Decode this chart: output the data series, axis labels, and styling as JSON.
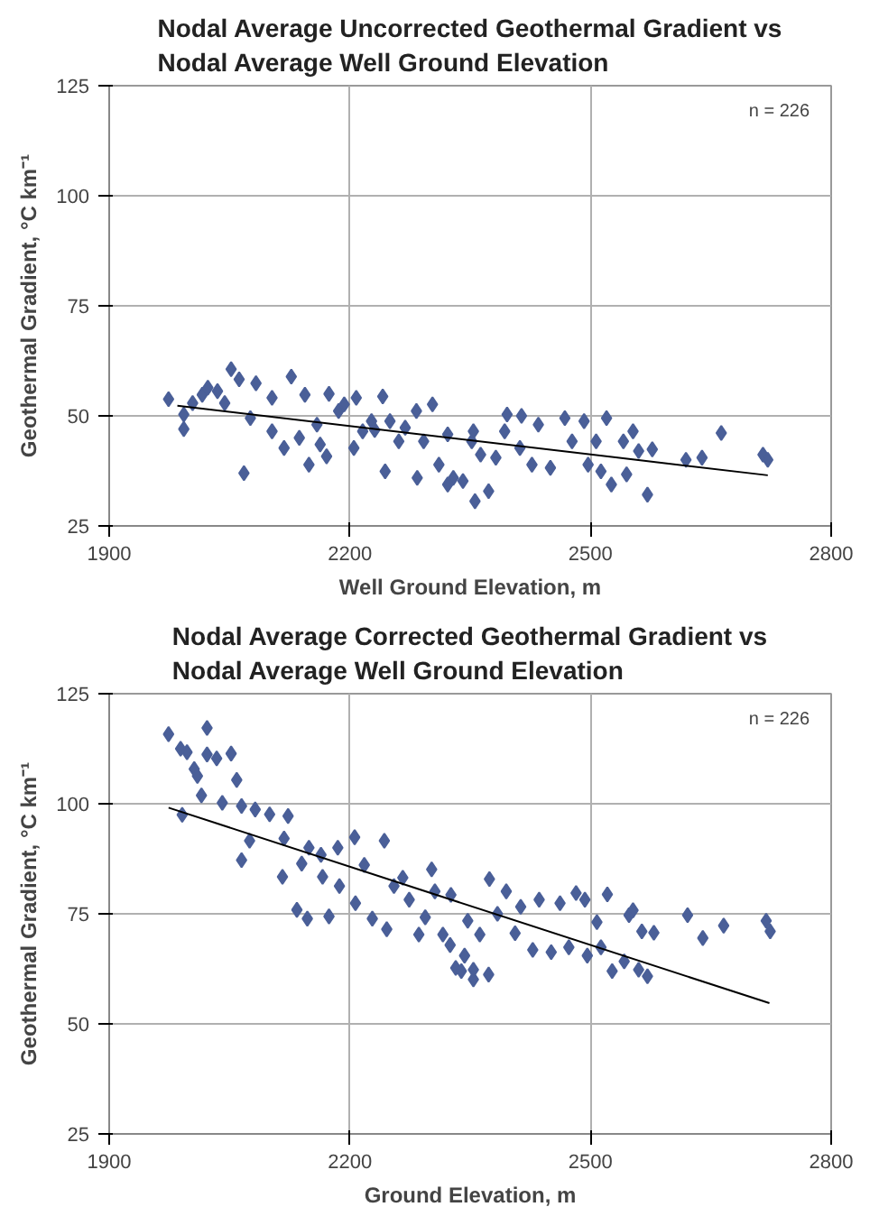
{
  "chart_data": [
    {
      "type": "scatter",
      "title": "Nodal Average Uncorrected Geothermal Gradient vs Nodal Average Well Ground Elevation",
      "xlabel": "Well Ground Elevation, m",
      "ylabel": "Geothermal Gradient, °C km⁻¹",
      "annotations": [
        "n = 226"
      ],
      "xlim": [
        1900,
        2800
      ],
      "ylim": [
        25,
        125
      ],
      "xticks": [
        1900,
        2200,
        2500,
        2800
      ],
      "yticks": [
        25,
        50,
        75,
        100,
        125
      ],
      "grid": true,
      "series": [
        {
          "color": "#4a5f98",
          "marker": "diamond",
          "x": [
            1974,
            1993,
            1993,
            2004,
            2016,
            2023,
            2035,
            2044,
            2052,
            2062,
            2068,
            2076,
            2083,
            2103,
            2103,
            2118,
            2127,
            2137,
            2144,
            2149,
            2159,
            2171,
            2174,
            2186,
            2193,
            2205,
            2208,
            2216,
            2227,
            2241,
            2244,
            2250,
            2261,
            2269,
            2283,
            2284,
            2292,
            2303,
            2311,
            2322,
            2329,
            2341,
            2352,
            2356,
            2363,
            2373,
            2382,
            2393,
            2396,
            2412,
            2414,
            2427,
            2435,
            2450,
            2468,
            2477,
            2492,
            2497,
            2507,
            2513,
            2520,
            2526,
            2541,
            2545,
            2553,
            2560,
            2571,
            2577,
            2619,
            2639,
            2663,
            2715,
            2721,
            2354,
            2322,
            2231,
            2163
          ],
          "values": [
            53.8,
            47.0,
            50.3,
            52.9,
            54.8,
            56.4,
            55.6,
            52.9,
            60.6,
            58.3,
            37.0,
            49.5,
            57.4,
            46.5,
            54.1,
            42.7,
            58.9,
            45.0,
            54.8,
            38.9,
            48.0,
            40.8,
            55.0,
            51.1,
            52.6,
            42.7,
            54.1,
            46.5,
            48.8,
            54.4,
            37.4,
            48.8,
            44.2,
            47.3,
            51.1,
            35.9,
            44.2,
            52.6,
            38.9,
            45.8,
            35.9,
            35.2,
            44.2,
            30.6,
            41.2,
            32.9,
            40.5,
            46.5,
            50.3,
            42.7,
            50.0,
            38.9,
            48.0,
            38.2,
            49.5,
            44.2,
            48.8,
            38.9,
            44.2,
            37.4,
            49.5,
            34.4,
            44.2,
            36.7,
            46.5,
            42.0,
            32.1,
            42.4,
            40.0,
            40.5,
            46.1,
            41.2,
            40.0,
            46.5,
            34.4,
            46.8,
            43.5
          ]
        },
        {
          "type": "line",
          "color": "#000000",
          "x": [
            1985,
            2721
          ],
          "values": [
            52.3,
            36.5
          ]
        }
      ]
    },
    {
      "type": "scatter",
      "title": "Nodal Average Corrected Geothermal Gradient vs Nodal Average Well Ground Elevation",
      "xlabel": "Ground Elevation, m",
      "ylabel": "Geothermal Gradient, °C km⁻¹",
      "annotations": [
        "n = 226"
      ],
      "xlim": [
        1900,
        2800
      ],
      "ylim": [
        25,
        125
      ],
      "xticks": [
        1900,
        2200,
        2500,
        2800
      ],
      "yticks": [
        25,
        50,
        75,
        100,
        125
      ],
      "grid": true,
      "series": [
        {
          "color": "#4a5f98",
          "marker": "diamond",
          "x": [
            1974,
            1989,
            1997,
            2006,
            2010,
            2015,
            2022,
            2022,
            2034,
            2052,
            2041,
            2059,
            1991,
            2065,
            2065,
            2075,
            2082,
            2100,
            2118,
            2123,
            2116,
            2134,
            2147,
            2140,
            2149,
            2164,
            2166,
            2174,
            2185,
            2187,
            2206,
            2207,
            2218,
            2228,
            2243,
            2246,
            2255,
            2266,
            2274,
            2286,
            2294,
            2302,
            2306,
            2316,
            2325,
            2326,
            2332,
            2339,
            2343,
            2347,
            2354,
            2354,
            2362,
            2373,
            2374,
            2384,
            2395,
            2406,
            2413,
            2428,
            2436,
            2451,
            2462,
            2473,
            2482,
            2493,
            2496,
            2508,
            2513,
            2521,
            2527,
            2542,
            2548,
            2553,
            2560,
            2564,
            2571,
            2579,
            2621,
            2640,
            2666,
            2719,
            2724
          ],
          "values": [
            115.8,
            112.5,
            111.7,
            107.9,
            106.3,
            101.9,
            117.2,
            111.2,
            110.3,
            111.4,
            100.2,
            105.4,
            97.5,
            99.5,
            87.2,
            91.6,
            98.7,
            97.6,
            92.1,
            97.2,
            83.4,
            75.9,
            73.9,
            86.4,
            90.0,
            88.4,
            83.4,
            74.4,
            90.0,
            81.3,
            92.4,
            77.4,
            86.1,
            73.9,
            91.6,
            71.5,
            81.3,
            83.2,
            78.2,
            70.3,
            74.2,
            85.1,
            80.1,
            70.3,
            67.9,
            79.3,
            62.7,
            62.0,
            65.5,
            73.4,
            60.1,
            62.3,
            70.3,
            61.2,
            82.9,
            75.0,
            80.1,
            70.6,
            76.6,
            66.8,
            78.2,
            66.3,
            77.4,
            67.4,
            79.7,
            78.2,
            65.5,
            73.1,
            67.4,
            79.4,
            62.0,
            64.2,
            74.7,
            75.8,
            62.3,
            71.0,
            60.8,
            70.7,
            74.7,
            69.5,
            72.3,
            73.4,
            71.0
          ]
        },
        {
          "type": "line",
          "color": "#000000",
          "x": [
            1974,
            2723
          ],
          "values": [
            99.1,
            54.7
          ]
        }
      ]
    }
  ]
}
